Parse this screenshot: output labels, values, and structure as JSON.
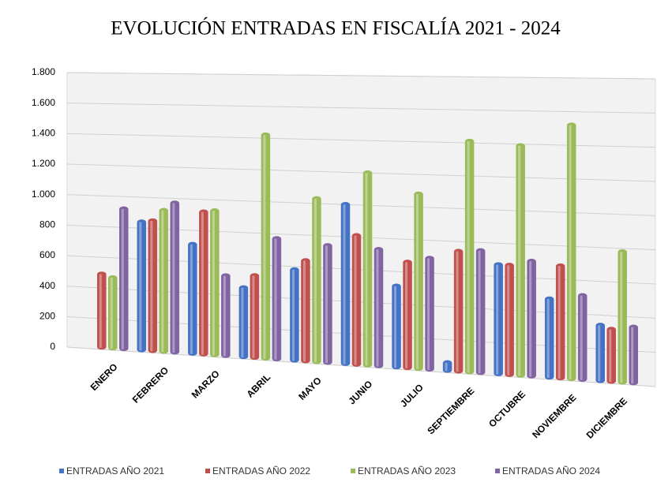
{
  "chart_data": {
    "type": "bar",
    "title": "EVOLUCIÓN ENTRADAS EN FISCALÍA 2021 - 2024",
    "categories": [
      "ENERO",
      "FEBRERO",
      "MARZO",
      "ABRIL",
      "MAYO",
      "JUNIO",
      "JULIO",
      "SEPTIEMBRE",
      "OCTUBRE",
      "NOVIEMBRE",
      "DICIEMBRE"
    ],
    "series": [
      {
        "name": "ENTRADAS AÑO 2021",
        "color": "#4472c4",
        "values": [
          null,
          840,
          710,
          450,
          580,
          1000,
          510,
          60,
          670,
          480,
          340
        ]
      },
      {
        "name": "ENTRADAS AÑO 2022",
        "color": "#c0504d",
        "values": [
          490,
          850,
          920,
          530,
          640,
          810,
          660,
          740,
          670,
          680,
          320
        ]
      },
      {
        "name": "ENTRADAS AÑO 2023",
        "color": "#9bbb59",
        "values": [
          470,
          920,
          930,
          1420,
          1030,
          1200,
          1080,
          1410,
          1390,
          1520,
          780
        ]
      },
      {
        "name": "ENTRADAS AÑO 2024",
        "color": "#8064a2",
        "values": [
          920,
          970,
          520,
          770,
          740,
          730,
          690,
          750,
          700,
          510,
          340
        ]
      }
    ],
    "ylim": [
      0,
      1800
    ],
    "yticks": [
      0,
      200,
      400,
      600,
      800,
      {
        "value": 1000,
        "label": "1.000"
      },
      {
        "value": 1200,
        "label": "1.200"
      },
      {
        "value": 1400,
        "label": "1.400"
      },
      {
        "value": 1600,
        "label": "1.600"
      },
      {
        "value": 1800,
        "label": "1.800"
      }
    ],
    "grid": true,
    "legend": "bottom"
  }
}
